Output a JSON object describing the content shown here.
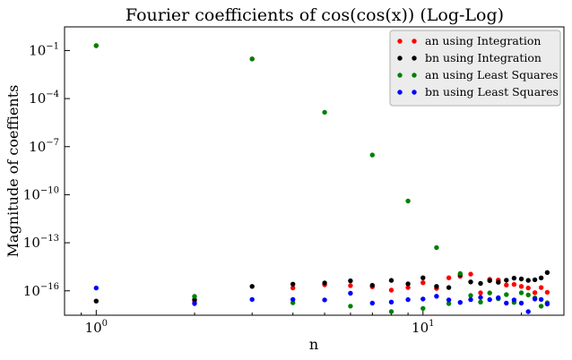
{
  "chart_data": {
    "type": "scatter",
    "title": "Fourier coefficients of cos(cos(x)) (Log-Log)",
    "xlabel": "n",
    "ylabel": "Magnitude of coeffients",
    "xscale": "log",
    "yscale": "log",
    "xlim": [
      0.8,
      27
    ],
    "ylim": [
      3e-18,
      3
    ],
    "legend_position": "top-right",
    "grid": false,
    "x_ticks": [
      {
        "value": 1,
        "base": "10",
        "exp": "0"
      },
      {
        "value": 10,
        "base": "10",
        "exp": "1"
      }
    ],
    "y_ticks": [
      {
        "value": 1e-16,
        "base": "10",
        "exp": "−16"
      },
      {
        "value": 1e-13,
        "base": "10",
        "exp": "−13"
      },
      {
        "value": 1e-10,
        "base": "10",
        "exp": "−10"
      },
      {
        "value": 1e-07,
        "base": "10",
        "exp": "−7"
      },
      {
        "value": 0.0001,
        "base": "10",
        "exp": "−4"
      },
      {
        "value": 0.1,
        "base": "10",
        "exp": "−1"
      }
    ],
    "series": [
      {
        "name": "an using Integration",
        "color": "#ff0000",
        "points": [
          [
            1,
            0.2
          ],
          [
            2,
            2.2e-17
          ],
          [
            3,
            0.03
          ],
          [
            4,
            1.5e-16
          ],
          [
            5,
            2.4e-16
          ],
          [
            6,
            2.1e-16
          ],
          [
            7,
            1.8e-16
          ],
          [
            8,
            1.1e-16
          ],
          [
            9,
            1.6e-16
          ],
          [
            10,
            3.2e-16
          ],
          [
            11,
            1.4e-16
          ],
          [
            12,
            6.5e-16
          ],
          [
            13,
            8e-16
          ],
          [
            14,
            1.1e-15
          ],
          [
            15,
            7.5e-17
          ],
          [
            16,
            5.2e-16
          ],
          [
            17,
            4.7e-16
          ],
          [
            18,
            2.3e-16
          ],
          [
            19,
            2.5e-16
          ],
          [
            20,
            1.9e-16
          ],
          [
            21,
            1.5e-16
          ],
          [
            22,
            7.7e-17
          ],
          [
            23,
            1.6e-16
          ],
          [
            24,
            8.1e-17
          ]
        ]
      },
      {
        "name": "bn using Integration",
        "color": "#000000",
        "points": [
          [
            1,
            2.3e-17
          ],
          [
            2,
            2.8e-17
          ],
          [
            3,
            1.9e-16
          ],
          [
            4,
            2.6e-16
          ],
          [
            5,
            3.1e-16
          ],
          [
            6,
            4.2e-16
          ],
          [
            7,
            2.2e-16
          ],
          [
            8,
            4.5e-16
          ],
          [
            9,
            2.7e-16
          ],
          [
            10,
            6.5e-16
          ],
          [
            11,
            1.9e-16
          ],
          [
            12,
            1.6e-16
          ],
          [
            13,
            1e-15
          ],
          [
            14,
            3.6e-16
          ],
          [
            15,
            2.9e-16
          ],
          [
            16,
            4.3e-16
          ],
          [
            17,
            3.4e-16
          ],
          [
            18,
            4.6e-16
          ],
          [
            19,
            6.2e-16
          ],
          [
            20,
            5.5e-16
          ],
          [
            21,
            4.5e-16
          ],
          [
            22,
            4.9e-16
          ],
          [
            23,
            6.4e-16
          ],
          [
            24,
            1.4e-15
          ]
        ]
      },
      {
        "name": "an using Least Squares",
        "color": "#008000",
        "points": [
          [
            1,
            0.2
          ],
          [
            2,
            4.5e-17
          ],
          [
            3,
            0.03
          ],
          [
            4,
            1.8e-17
          ],
          [
            5,
            1.4e-05
          ],
          [
            6,
            1.1e-17
          ],
          [
            7,
            3e-08
          ],
          [
            8,
            5e-18
          ],
          [
            9,
            4e-11
          ],
          [
            10,
            8e-18
          ],
          [
            11,
            5e-14
          ],
          [
            12,
            1.6e-17
          ],
          [
            13,
            1.2e-15
          ],
          [
            14,
            5.1e-17
          ],
          [
            15,
            2e-17
          ],
          [
            16,
            7.4e-17
          ],
          [
            17,
            3.2e-17
          ],
          [
            18,
            5.8e-17
          ],
          [
            19,
            1.9e-17
          ],
          [
            20,
            7.5e-17
          ],
          [
            21,
            5.6e-17
          ],
          [
            22,
            3.6e-17
          ],
          [
            23,
            1.1e-17
          ],
          [
            24,
            1.8e-17
          ]
        ]
      },
      {
        "name": "bn using Least Squares",
        "color": "#0000ff",
        "points": [
          [
            1,
            1.5e-16
          ],
          [
            2,
            1.6e-17
          ],
          [
            3,
            2.9e-17
          ],
          [
            4,
            2.9e-17
          ],
          [
            5,
            2.7e-17
          ],
          [
            6,
            7e-17
          ],
          [
            7,
            1.7e-17
          ],
          [
            8,
            2e-17
          ],
          [
            9,
            2.8e-17
          ],
          [
            10,
            3.1e-17
          ],
          [
            11,
            4.6e-17
          ],
          [
            12,
            2.7e-17
          ],
          [
            13,
            1.9e-17
          ],
          [
            14,
            2.8e-17
          ],
          [
            15,
            3.9e-17
          ],
          [
            16,
            2.8e-17
          ],
          [
            17,
            3.7e-17
          ],
          [
            18,
            1.7e-17
          ],
          [
            19,
            2.7e-17
          ],
          [
            20,
            1.7e-17
          ],
          [
            21,
            5e-18
          ],
          [
            22,
            3.1e-17
          ],
          [
            23,
            2.9e-17
          ],
          [
            24,
            1.5e-17
          ]
        ]
      }
    ]
  }
}
